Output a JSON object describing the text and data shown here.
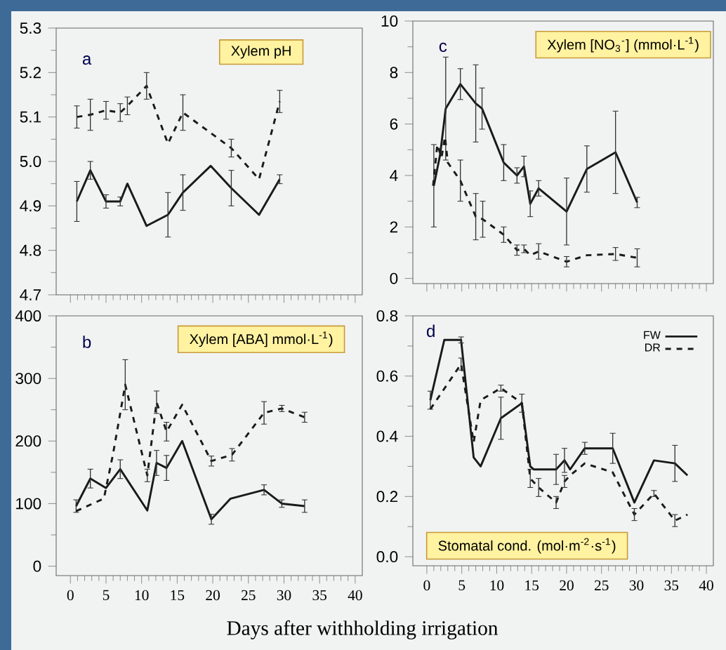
{
  "chart_data": [
    {
      "type": "line",
      "title": "Xylem pH",
      "annotations": [
        "a"
      ],
      "xlim": [
        -2,
        41
      ],
      "xticks": [
        0,
        5,
        10,
        15,
        20,
        25,
        30,
        35,
        40
      ],
      "tick_labels": "y",
      "ylim": [
        4.7,
        5.3
      ],
      "yticks": [
        4.7,
        4.8,
        4.9,
        {
          "value": 5,
          "label": "5.0"
        },
        5.1,
        5.2,
        5.3
      ],
      "series": [
        {
          "color": "#1a1a1a",
          "line_style": "solid",
          "x": [
            0.9,
            2.8,
            5,
            7,
            8,
            10.7,
            13.7,
            15.8,
            19.7,
            22.6,
            26.5,
            29.4
          ],
          "values": [
            4.91,
            4.98,
            4.91,
            4.91,
            4.95,
            4.855,
            4.88,
            4.93,
            4.99,
            4.94,
            4.88,
            4.96
          ],
          "errors": [
            0.045,
            0.02,
            0.015,
            0.01,
            null,
            null,
            0.05,
            0.04,
            null,
            0.04,
            null,
            0.01
          ]
        },
        {
          "color": "#1a1a1a",
          "line_style": "dashed",
          "x": [
            0.9,
            2.8,
            5,
            7,
            8,
            10.7,
            13.7,
            15.8,
            22.6,
            26.5,
            29.4
          ],
          "values": [
            5.1,
            5.105,
            5.115,
            5.11,
            5.125,
            5.17,
            5.04,
            5.11,
            5.03,
            4.96,
            5.135
          ],
          "errors": [
            0.025,
            0.035,
            0.02,
            0.02,
            0.02,
            0.03,
            null,
            0.04,
            0.02,
            null,
            0.025
          ]
        }
      ]
    },
    {
      "type": "line",
      "title": "Xylem [NO$_{3}$$^{-}$] (mmol·L$^{-1}$)",
      "annotations": [
        "c"
      ],
      "xlim": [
        -2,
        41
      ],
      "xticks": [
        0,
        5,
        10,
        15,
        20,
        25,
        30,
        35,
        40
      ],
      "tick_labels": "y",
      "ylim": [
        -0.2,
        10
      ],
      "yticks": [
        0,
        2,
        4,
        6,
        8,
        10
      ],
      "series": [
        {
          "color": "#1a1a1a",
          "line_style": "solid",
          "x": [
            1.0,
            1.9,
            2.7,
            4.8,
            7.0,
            7.9,
            11,
            12.9,
            13.9,
            14.8,
            16,
            20,
            22.9,
            27,
            30.1
          ],
          "values": [
            3.6,
            4.8,
            6.6,
            7.55,
            6.8,
            6.6,
            4.5,
            4.0,
            4.35,
            2.9,
            3.5,
            2.6,
            4.25,
            4.9,
            2.95
          ],
          "errors": [
            1.6,
            null,
            2.0,
            0.6,
            1.5,
            0.8,
            0.7,
            0.3,
            0.4,
            0.5,
            0.3,
            1.3,
            0.9,
            1.6,
            0.2
          ]
        },
        {
          "color": "#1a1a1a",
          "line_style": "dashed",
          "x": [
            0.9,
            1.5,
            2.1,
            2.6,
            3.0,
            4.8,
            7.0,
            8.0,
            11,
            12.9,
            13.9,
            14.8,
            16,
            18.5,
            20,
            22.9,
            27,
            30.1
          ],
          "values": [
            3.6,
            5.2,
            4.7,
            5.5,
            4.5,
            3.8,
            2.4,
            2.3,
            1.7,
            1.1,
            1.15,
            0.9,
            1.05,
            0.8,
            0.65,
            0.9,
            0.95,
            0.8
          ],
          "errors": [
            null,
            null,
            null,
            null,
            null,
            0.8,
            0.9,
            0.7,
            0.3,
            0.2,
            0.15,
            null,
            0.3,
            null,
            0.2,
            null,
            0.25,
            0.35
          ]
        }
      ]
    },
    {
      "type": "line",
      "title": "Xylem [ABA] mmol·L$^{-1}$)",
      "annotations": [
        "b"
      ],
      "xlabel": "Days after withholding irrigation",
      "xlim": [
        -2,
        41
      ],
      "xticks": [
        0,
        5,
        10,
        15,
        20,
        25,
        30,
        35,
        40
      ],
      "ylim": [
        -15,
        400
      ],
      "yticks": [
        0,
        100,
        200,
        300,
        400
      ],
      "series": [
        {
          "color": "#1a1a1a",
          "line_style": "solid",
          "x": [
            0.8,
            2.8,
            5,
            7,
            10.8,
            12.1,
            13.5,
            15.7,
            19.8,
            22.5,
            27.2,
            29.7,
            32.9
          ],
          "values": [
            96,
            140,
            125,
            155,
            89,
            165,
            157,
            200,
            75,
            108,
            122,
            100,
            96
          ],
          "errors": [
            10,
            15,
            null,
            15,
            null,
            20,
            20,
            null,
            8,
            null,
            8,
            6,
            10
          ]
        },
        {
          "color": "#1a1a1a",
          "line_style": "dashed",
          "x": [
            0.8,
            4.7,
            6.0,
            7.7,
            10.8,
            12.1,
            13.5,
            15.7,
            19.8,
            22.7,
            27.2,
            29.7,
            32.9
          ],
          "values": [
            88,
            108,
            180,
            290,
            145,
            262,
            215,
            258,
            168,
            178,
            245,
            252,
            238
          ],
          "errors": [
            null,
            null,
            null,
            40,
            10,
            18,
            15,
            null,
            8,
            10,
            18,
            5,
            8
          ]
        }
      ]
    },
    {
      "type": "line",
      "title": "Stomatal cond. (mol·m$^{-2}$·s$^{-1}$)",
      "annotations": [
        "d"
      ],
      "legend": "top right",
      "xlim": [
        -2,
        41
      ],
      "xticks": [
        0,
        5,
        10,
        15,
        20,
        25,
        30,
        35,
        40
      ],
      "ylim": [
        -0.03,
        0.8
      ],
      "yticks": [
        {
          "value": 0,
          "label": "0.0"
        },
        0.2,
        0.4,
        0.6,
        0.8
      ],
      "series": [
        {
          "name": "FW",
          "color": "#1a1a1a",
          "line_style": "solid",
          "x": [
            0.5,
            2.5,
            4.9,
            6.7,
            7.7,
            10.6,
            13.6,
            14.8,
            15.3,
            18.5,
            19.7,
            20.5,
            22.6,
            26.6,
            29.7,
            32.5,
            35.5,
            37.3
          ],
          "values": [
            0.52,
            0.72,
            0.72,
            0.33,
            0.3,
            0.46,
            0.51,
            0.3,
            0.29,
            0.29,
            0.32,
            0.29,
            0.36,
            0.36,
            0.18,
            0.32,
            0.31,
            0.27
          ],
          "errors": [
            0.03,
            null,
            0.01,
            null,
            null,
            0.07,
            0.03,
            null,
            null,
            0.05,
            0.04,
            null,
            0.02,
            0.05,
            null,
            null,
            0.06,
            null
          ]
        },
        {
          "name": "DR",
          "color": "#1a1a1a",
          "line_style": "dashed",
          "x": [
            0.5,
            4.9,
            6.7,
            7.7,
            10.6,
            13.6,
            14.8,
            16,
            18.5,
            19.7,
            20.5,
            22.6,
            26.6,
            29.7,
            32.5,
            35.5,
            37.3
          ],
          "values": [
            0.49,
            0.64,
            0.38,
            0.52,
            0.56,
            0.51,
            0.26,
            0.23,
            0.18,
            0.25,
            0.27,
            0.31,
            0.28,
            0.14,
            0.21,
            0.12,
            0.14
          ],
          "errors": [
            null,
            0.02,
            null,
            null,
            0.01,
            null,
            0.03,
            0.03,
            0.02,
            0.02,
            null,
            null,
            null,
            0.02,
            0.01,
            0.02,
            null
          ]
        }
      ]
    }
  ]
}
